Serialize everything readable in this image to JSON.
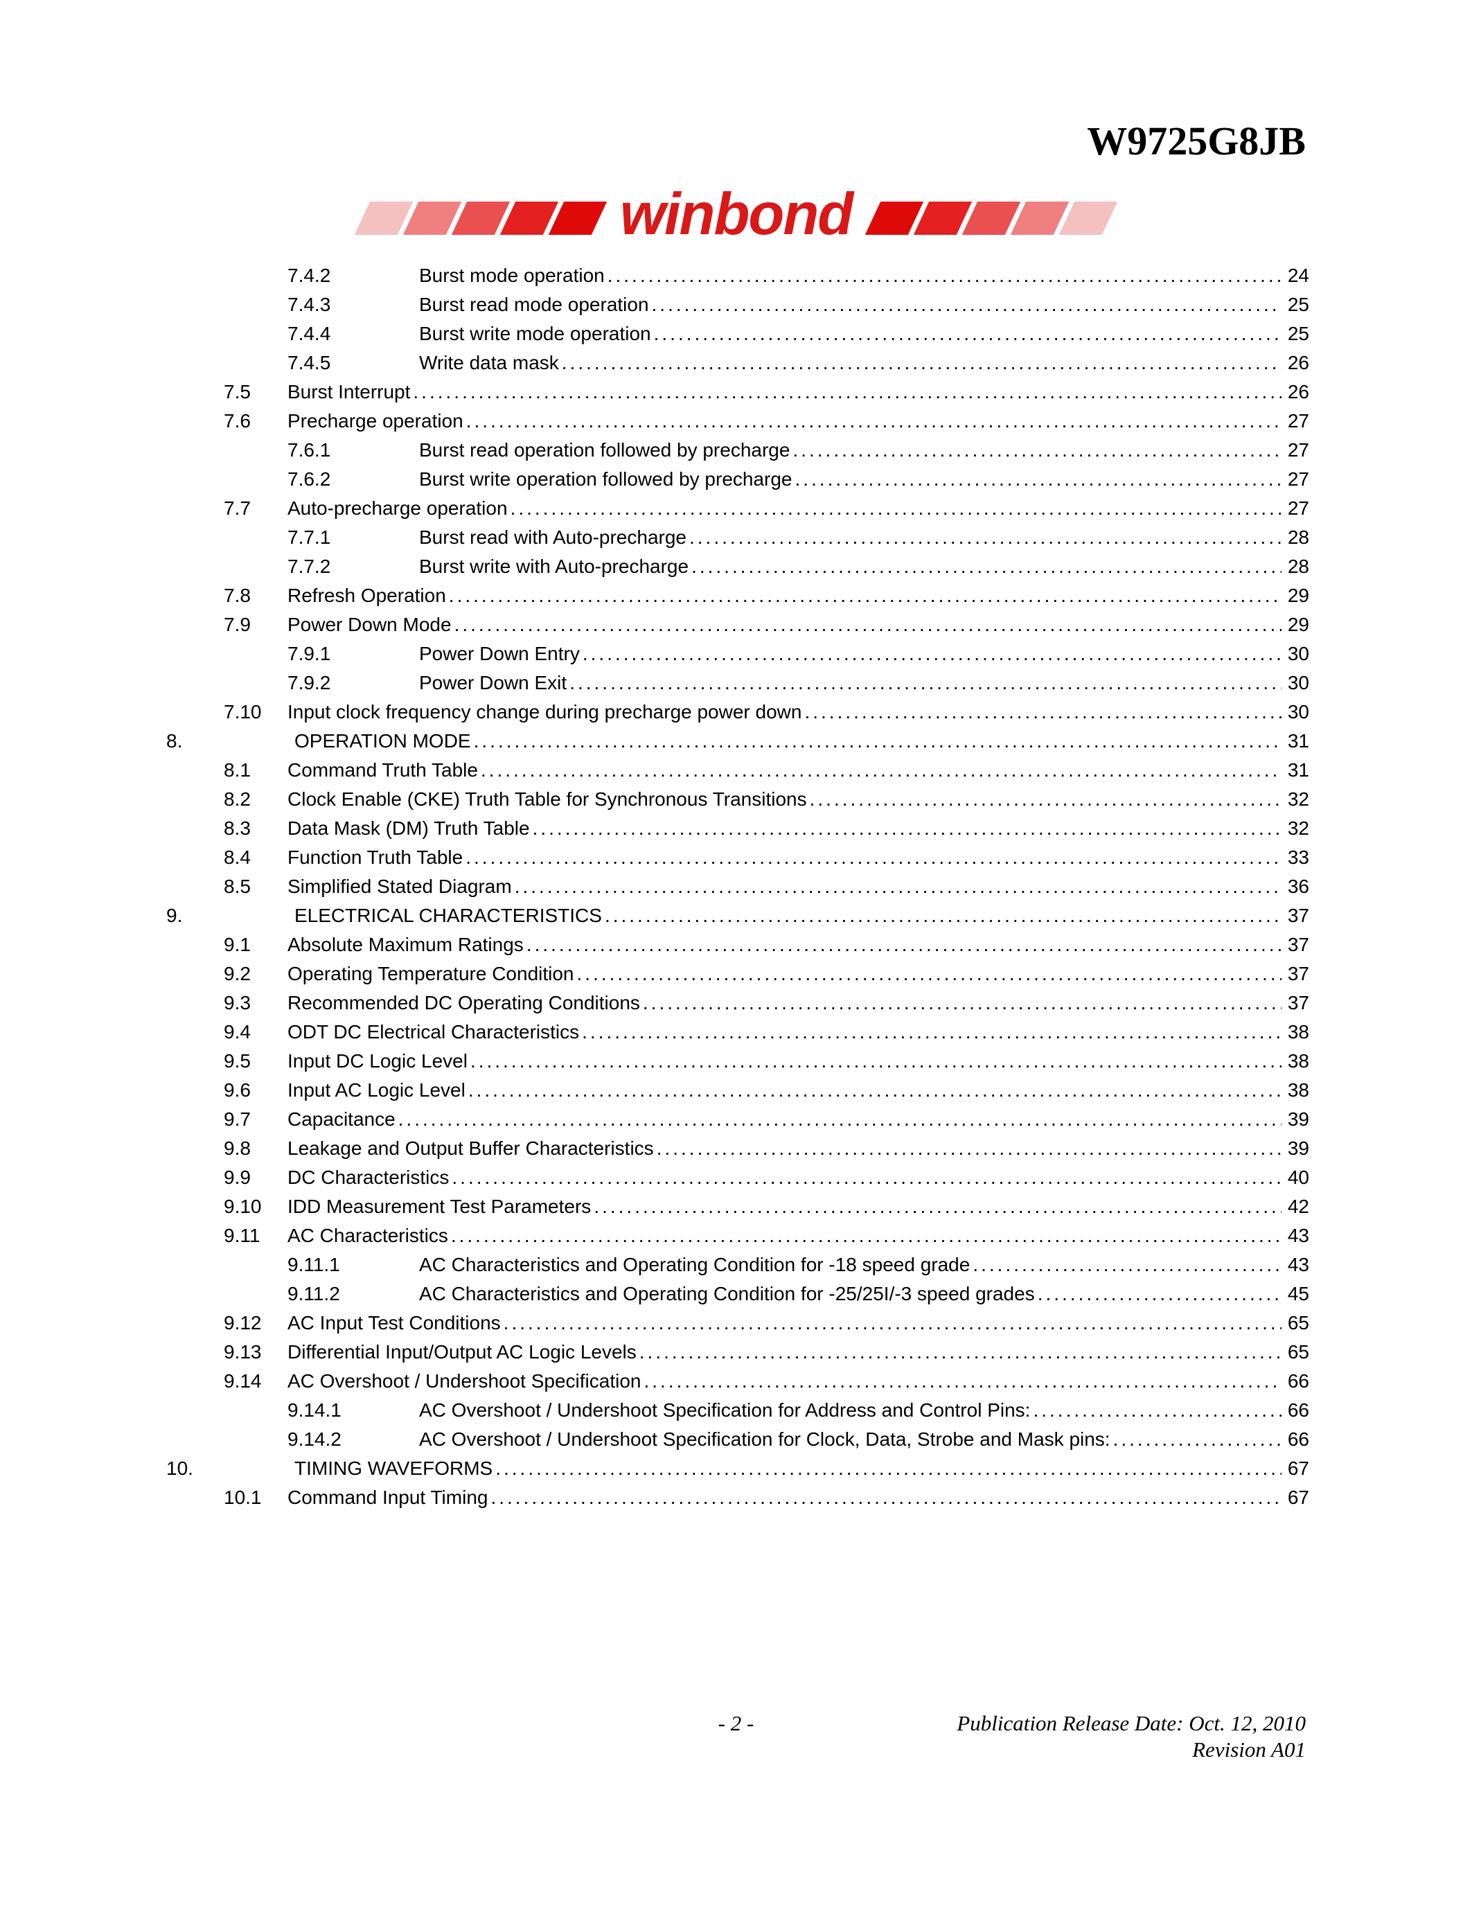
{
  "header": {
    "part_number": "W9725G8JB",
    "logo_text": "winbond",
    "bar_colors_left": [
      "#f5c0c0",
      "#f08080",
      "#ea5050",
      "#e52020",
      "#de0a0a"
    ],
    "bar_colors_right": [
      "#de0a0a",
      "#e52020",
      "#ea5050",
      "#f08080",
      "#f5c0c0"
    ],
    "logo_color": "#d91818"
  },
  "toc": [
    {
      "level": 3,
      "num": "7.4.2",
      "title": "Burst mode operation",
      "page": "24"
    },
    {
      "level": 3,
      "num": "7.4.3",
      "title": "Burst read mode operation",
      "page": "25"
    },
    {
      "level": 3,
      "num": "7.4.4",
      "title": "Burst write mode operation",
      "page": "25"
    },
    {
      "level": 3,
      "num": "7.4.5",
      "title": "Write data mask",
      "page": "26"
    },
    {
      "level": 2,
      "num": "7.5",
      "title": "Burst Interrupt",
      "page": "26"
    },
    {
      "level": 2,
      "num": "7.6",
      "title": "Precharge operation",
      "page": "27"
    },
    {
      "level": 3,
      "num": "7.6.1",
      "title": "Burst read operation followed by precharge",
      "page": "27"
    },
    {
      "level": 3,
      "num": "7.6.2",
      "title": "Burst write operation followed by precharge",
      "page": "27"
    },
    {
      "level": 2,
      "num": "7.7",
      "title": "Auto-precharge operation",
      "page": "27"
    },
    {
      "level": 3,
      "num": "7.7.1",
      "title": "Burst read with Auto-precharge",
      "page": "28"
    },
    {
      "level": 3,
      "num": "7.7.2",
      "title": "Burst write with Auto-precharge",
      "page": "28"
    },
    {
      "level": 2,
      "num": "7.8",
      "title": "Refresh Operation",
      "page": "29"
    },
    {
      "level": 2,
      "num": "7.9",
      "title": "Power Down Mode",
      "page": "29"
    },
    {
      "level": 3,
      "num": "7.9.1",
      "title": "Power Down Entry",
      "page": "30"
    },
    {
      "level": 3,
      "num": "7.9.2",
      "title": "Power Down Exit",
      "page": "30"
    },
    {
      "level": 2,
      "num": "7.10",
      "title": "Input clock frequency change during precharge power down",
      "page": "30"
    },
    {
      "level": 1,
      "num": "8.",
      "title": "OPERATION MODE",
      "page": "31"
    },
    {
      "level": 2,
      "num": "8.1",
      "title": "Command Truth Table",
      "page": "31"
    },
    {
      "level": 2,
      "num": "8.2",
      "title": "Clock Enable (CKE) Truth Table for Synchronous Transitions",
      "page": "32"
    },
    {
      "level": 2,
      "num": "8.3",
      "title": "Data Mask (DM) Truth Table",
      "page": "32"
    },
    {
      "level": 2,
      "num": "8.4",
      "title": "Function Truth Table",
      "page": "33"
    },
    {
      "level": 2,
      "num": "8.5",
      "title": "Simplified Stated Diagram",
      "page": "36"
    },
    {
      "level": 1,
      "num": "9.",
      "title": "ELECTRICAL CHARACTERISTICS",
      "page": "37"
    },
    {
      "level": 2,
      "num": "9.1",
      "title": "Absolute Maximum Ratings",
      "page": "37"
    },
    {
      "level": 2,
      "num": "9.2",
      "title": "Operating Temperature Condition",
      "page": "37"
    },
    {
      "level": 2,
      "num": "9.3",
      "title": "Recommended DC Operating Conditions",
      "page": "37"
    },
    {
      "level": 2,
      "num": "9.4",
      "title": "ODT DC Electrical Characteristics",
      "page": "38"
    },
    {
      "level": 2,
      "num": "9.5",
      "title": "Input DC Logic Level",
      "page": "38"
    },
    {
      "level": 2,
      "num": "9.6",
      "title": "Input AC Logic Level",
      "page": "38"
    },
    {
      "level": 2,
      "num": "9.7",
      "title": "Capacitance",
      "page": "39"
    },
    {
      "level": 2,
      "num": "9.8",
      "title": "Leakage and Output Buffer Characteristics",
      "page": "39"
    },
    {
      "level": 2,
      "num": "9.9",
      "title": "DC Characteristics",
      "page": "40"
    },
    {
      "level": 2,
      "num": "9.10",
      "title": "IDD Measurement Test Parameters",
      "page": "42"
    },
    {
      "level": 2,
      "num": "9.11",
      "title": "AC Characteristics",
      "page": "43"
    },
    {
      "level": 3,
      "num": "9.11.1",
      "title": "AC Characteristics and Operating Condition for -18 speed grade",
      "page": "43"
    },
    {
      "level": 3,
      "num": "9.11.2",
      "title": "AC Characteristics and Operating Condition for -25/25I/-3 speed grades",
      "page": "45"
    },
    {
      "level": 2,
      "num": "9.12",
      "title": "AC Input Test Conditions",
      "page": "65"
    },
    {
      "level": 2,
      "num": "9.13",
      "title": "Differential Input/Output AC Logic Levels",
      "page": "65"
    },
    {
      "level": 2,
      "num": "9.14",
      "title": "AC Overshoot / Undershoot Specification",
      "page": "66"
    },
    {
      "level": 3,
      "num": "9.14.1",
      "title": "AC Overshoot / Undershoot Specification for Address and Control Pins:",
      "page": "66"
    },
    {
      "level": 3,
      "num": "9.14.2",
      "title": "AC Overshoot / Undershoot Specification for Clock, Data, Strobe and Mask pins:",
      "page": "66"
    },
    {
      "level": 1,
      "num": "10.",
      "title": "TIMING WAVEFORMS",
      "page": "67"
    },
    {
      "level": 2,
      "num": "10.1",
      "title": "Command Input Timing",
      "page": "67"
    }
  ],
  "footer": {
    "page_num": "- 2 -",
    "release_date": "Publication Release Date: Oct. 12, 2010",
    "revision": "Revision A01"
  },
  "style": {
    "font_family_body": "Arial, Helvetica, sans-serif",
    "font_family_header": "Times New Roman, serif",
    "font_size_toc": 28,
    "font_size_partnum": 58,
    "font_size_logo": 85,
    "background_color": "#ffffff",
    "text_color": "#000000"
  }
}
